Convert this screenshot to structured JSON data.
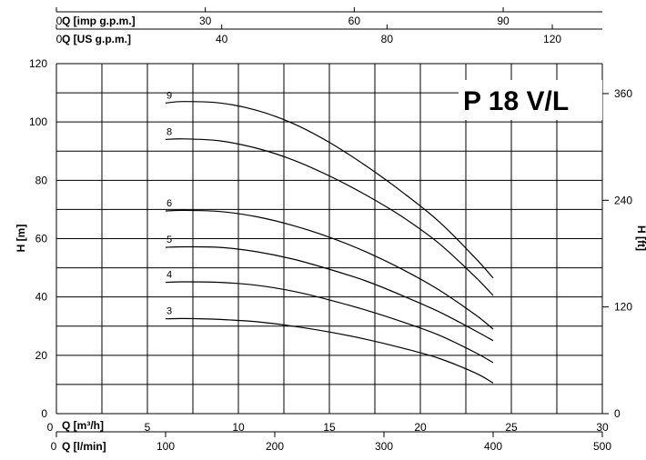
{
  "chart_data": {
    "type": "line",
    "title": "P 18 V/L",
    "left_axis": {
      "label": "H [m]",
      "range": [
        0,
        120
      ],
      "ticks": [
        "0",
        "20",
        "40",
        "60",
        "80",
        "100",
        "120"
      ]
    },
    "right_axis": {
      "label": "H [ft]",
      "ticks": [
        "0",
        "120",
        "240",
        "360"
      ]
    },
    "bottom_axes": [
      {
        "label": "Q [m³/h]",
        "range": [
          0,
          30
        ],
        "ticks": [
          "0",
          "5",
          "10",
          "15",
          "20",
          "25",
          "30"
        ]
      },
      {
        "label": "Q [l/min]",
        "ticks": [
          "0",
          "100",
          "200",
          "300",
          "400",
          "500"
        ]
      }
    ],
    "top_axes": [
      {
        "label": "Q [imp g.p.m.]",
        "ticks": [
          "0",
          "30",
          "60",
          "90"
        ]
      },
      {
        "label": "Q [US g.p.m.]",
        "ticks": [
          "0",
          "40",
          "80",
          "120"
        ]
      }
    ],
    "grid": true,
    "series": [
      {
        "name": "9",
        "x": [
          6,
          7,
          9,
          11,
          13,
          15,
          17,
          19,
          21,
          23,
          24
        ],
        "y": [
          106.5,
          107,
          106.5,
          104,
          99.5,
          93,
          85,
          76,
          66,
          53.5,
          46.5
        ]
      },
      {
        "name": "8",
        "x": [
          6,
          7,
          9,
          11,
          13,
          15,
          17,
          19,
          21,
          23,
          24
        ],
        "y": [
          94,
          94.2,
          93.5,
          91,
          87,
          81.5,
          75,
          67.5,
          58.5,
          47,
          40.5
        ]
      },
      {
        "name": "6",
        "x": [
          6,
          7,
          9,
          11,
          13,
          15,
          17,
          19,
          21,
          23,
          24
        ],
        "y": [
          69.5,
          69.7,
          69.3,
          67.5,
          64.5,
          60.5,
          55.5,
          49.5,
          42.5,
          34,
          29
        ]
      },
      {
        "name": "5",
        "x": [
          6,
          7,
          9,
          11,
          13,
          15,
          17,
          19,
          21,
          23,
          24
        ],
        "y": [
          57,
          57.2,
          57,
          55.5,
          53,
          49.5,
          45.5,
          40.5,
          35,
          28.5,
          25
        ]
      },
      {
        "name": "4",
        "x": [
          6,
          7,
          9,
          11,
          13,
          15,
          17,
          19,
          21,
          23,
          24
        ],
        "y": [
          45,
          45.2,
          45,
          44,
          42,
          39,
          35.5,
          31.5,
          27,
          21,
          17.5
        ]
      },
      {
        "name": "3",
        "x": [
          6,
          7,
          9,
          11,
          13,
          15,
          17,
          19,
          21,
          23,
          24
        ],
        "y": [
          32.5,
          32.6,
          32.3,
          31.5,
          30,
          28,
          25.5,
          22.5,
          19,
          14,
          10.5
        ]
      }
    ]
  }
}
